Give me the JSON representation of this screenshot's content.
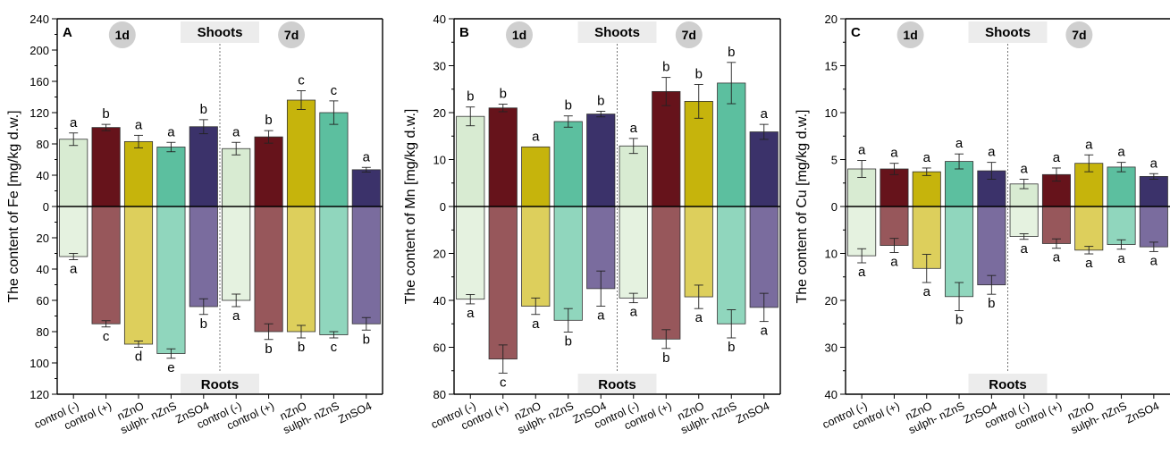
{
  "chart_data": [
    {
      "type": "bar",
      "panel": "A",
      "ylabel": "The content of Fe [mg/kg d.w.]",
      "top_label": "Shoots",
      "bottom_label": "Roots",
      "day_labels": [
        "1d",
        "7d"
      ],
      "categories": [
        "control (-)",
        "control (+)",
        "nZnO",
        "sulph- nZnS",
        "ZnSO4",
        "control (-)",
        "control (+)",
        "nZnO",
        "sulph- nZnS",
        "ZnSO4"
      ],
      "yticks_top": [
        "240",
        "200",
        "160",
        "120",
        "80",
        "40",
        "0"
      ],
      "yticks_bottom": [
        "20",
        "40",
        "60",
        "80",
        "100",
        "120"
      ],
      "ylim_top": [
        0,
        240
      ],
      "ylim_bottom": [
        0,
        120
      ],
      "shoots": [
        86,
        101,
        83,
        76,
        102,
        74,
        89,
        136,
        120,
        47
      ],
      "shoots_err": [
        8,
        4,
        8,
        6,
        9,
        8,
        8,
        12,
        15,
        3
      ],
      "shoots_sig": [
        "a",
        "b",
        "a",
        "a",
        "b",
        "a",
        "b",
        "c",
        "c",
        "a"
      ],
      "roots": [
        32,
        75,
        88,
        94,
        64,
        60,
        80,
        80,
        82,
        75
      ],
      "roots_err": [
        2,
        2,
        2,
        3,
        5,
        4,
        5,
        4,
        2,
        4
      ],
      "roots_sig": [
        "a",
        "c",
        "d",
        "e",
        "b",
        "a",
        "b",
        "b",
        "c",
        "b"
      ]
    },
    {
      "type": "bar",
      "panel": "B",
      "ylabel": "The content of Mn [mg/kg d.w.]",
      "top_label": "Shoots",
      "bottom_label": "Roots",
      "day_labels": [
        "1d",
        "7d"
      ],
      "categories": [
        "control (-)",
        "control (+)",
        "nZnO",
        "sulph- nZnS",
        "ZnSO4",
        "control (-)",
        "control (+)",
        "nZnO",
        "sulph- nZnS",
        "ZnSO4"
      ],
      "yticks_top": [
        "40",
        "30",
        "20",
        "10",
        "0"
      ],
      "yticks_bottom": [
        "20",
        "40",
        "60",
        "80"
      ],
      "ylim_top": [
        0,
        40
      ],
      "ylim_bottom": [
        0,
        80
      ],
      "shoots": [
        19.2,
        21,
        12.7,
        18.1,
        19.7,
        12.9,
        24.5,
        22.4,
        26.3,
        15.9
      ],
      "shoots_err": [
        2,
        0.8,
        0,
        1.2,
        0.6,
        1.6,
        3,
        3.6,
        4.4,
        1.6
      ],
      "shoots_sig": [
        "b",
        "b",
        "a",
        "b",
        "b",
        "a",
        "b",
        "b",
        "b",
        "a"
      ],
      "roots": [
        39.5,
        65,
        42.5,
        48.5,
        35,
        39,
        56.5,
        38.5,
        50,
        43
      ],
      "roots_err": [
        2,
        6,
        3.5,
        5,
        7.5,
        2,
        4,
        5,
        6,
        6
      ],
      "roots_sig": [
        "a",
        "c",
        "a",
        "b",
        "a",
        "a",
        "b",
        "a",
        "b",
        "a"
      ]
    },
    {
      "type": "bar",
      "panel": "C",
      "ylabel": "The content of Cu [mg/kg d.w.]",
      "top_label": "Shoots",
      "bottom_label": "Roots",
      "day_labels": [
        "1d",
        "7d"
      ],
      "categories": [
        "control (-)",
        "control (+)",
        "nZnO",
        "sulph- nZnS",
        "ZnSO4",
        "control (-)",
        "control (+)",
        "nZnO",
        "sulph- nZnS",
        "ZnSO4"
      ],
      "yticks_top": [
        "20",
        "15",
        "10",
        "5",
        "0"
      ],
      "yticks_bottom": [
        "10",
        "20",
        "30",
        "40"
      ],
      "ylim_top": [
        0,
        20
      ],
      "ylim_bottom": [
        0,
        40
      ],
      "shoots": [
        4,
        4,
        3.7,
        4.8,
        3.8,
        2.4,
        3.4,
        4.6,
        4.2,
        3.2
      ],
      "shoots_err": [
        0.9,
        0.6,
        0.4,
        0.8,
        0.9,
        0.5,
        0.7,
        0.9,
        0.5,
        0.3
      ],
      "shoots_sig": [
        "a",
        "a",
        "a",
        "a",
        "a",
        "a",
        "a",
        "a",
        "a",
        "a"
      ],
      "roots": [
        10.5,
        8.3,
        13.2,
        19.2,
        16.7,
        6.4,
        7.9,
        9.3,
        8.1,
        8.6
      ],
      "roots_err": [
        1.5,
        1.5,
        3,
        3,
        2,
        0.6,
        1,
        0.8,
        1,
        1
      ],
      "roots_sig": [
        "a",
        "a",
        "a",
        "b",
        "b",
        "a",
        "a",
        "a",
        "a",
        "a"
      ]
    }
  ],
  "colors": {
    "shoots": [
      "#d8ebd2",
      "#66131b",
      "#c6b40c",
      "#5cbf9f",
      "#3b326a"
    ],
    "roots": [
      "#e5f2e0",
      "#97575b",
      "#ddcf5c",
      "#90d6bd",
      "#7a6c9e"
    ],
    "day_circle": "#cfcfcf",
    "section_box": "#ececec"
  }
}
